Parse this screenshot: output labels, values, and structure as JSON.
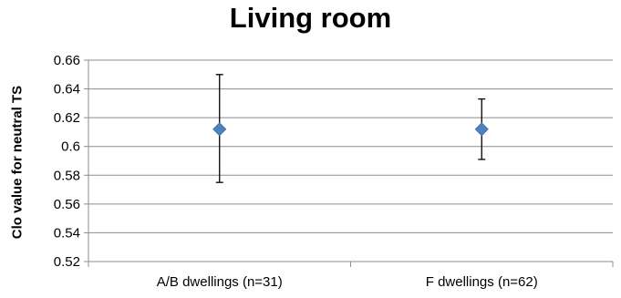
{
  "chart_data": {
    "type": "scatter",
    "title": "Living room",
    "xlabel": "",
    "ylabel": "Clo value for neutral TS",
    "ylim": [
      0.52,
      0.66
    ],
    "yticks": [
      0.52,
      0.54,
      0.56,
      0.58,
      0.6,
      0.62,
      0.64,
      0.66
    ],
    "ytick_labels": [
      "0.52",
      "0.54",
      "0.56",
      "0.58",
      "0.6",
      "0.62",
      "0.64",
      "0.66"
    ],
    "categories": [
      "A/B dwellings (n=31)",
      "F dwellings (n=62)"
    ],
    "series": [
      {
        "values": [
          0.612,
          0.612
        ],
        "error_low": [
          0.575,
          0.591
        ],
        "error_high": [
          0.65,
          0.633
        ],
        "marker": "diamond",
        "color": "#4f81bd"
      }
    ],
    "grid": true,
    "legend": "none"
  }
}
